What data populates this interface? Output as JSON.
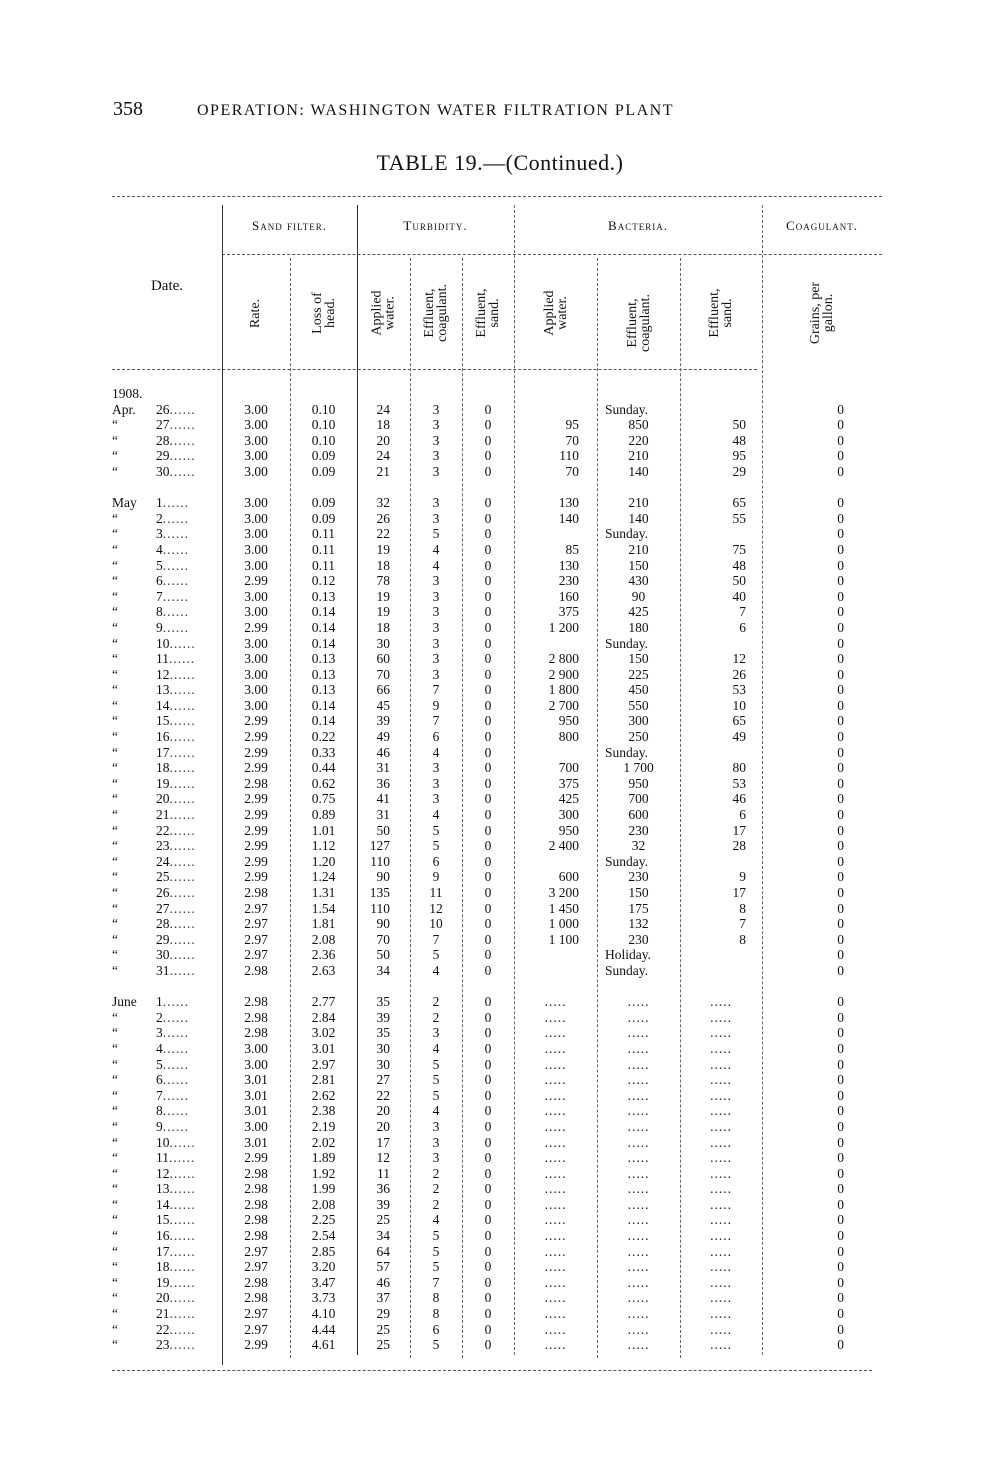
{
  "header": {
    "page_number": "358",
    "running_head": "OPERATION: WASHINGTON WATER FILTRATION PLANT",
    "table_title": "TABLE 19.—(Continued.)"
  },
  "columns": {
    "date": "Date.",
    "groups": {
      "sand_filter": "Sand filter.",
      "turbidity": "Turbidity.",
      "bacteria": "Bacteria.",
      "coagulant": "Coagulant."
    },
    "sand_filter": [
      "Rate.",
      "Loss of head."
    ],
    "turbidity": [
      "Applied water.",
      "Effluent, coagulant.",
      "Effluent, sand."
    ],
    "bacteria": [
      "Applied water.",
      "Effluent, coagulant.",
      "Effluent, sand."
    ],
    "coagulant": [
      "Grains, per gallon."
    ]
  },
  "year": "1908.",
  "months": [
    {
      "name": "Apr.",
      "rows": [
        [
          "26",
          "3.00",
          "0.10",
          "24",
          "3",
          "0",
          "",
          "Sunday.",
          "",
          "0"
        ],
        [
          "27",
          "3.00",
          "0.10",
          "18",
          "3",
          "0",
          "95",
          "850",
          "50",
          "0"
        ],
        [
          "28",
          "3.00",
          "0.10",
          "20",
          "3",
          "0",
          "70",
          "220",
          "48",
          "0"
        ],
        [
          "29",
          "3.00",
          "0.09",
          "24",
          "3",
          "0",
          "110",
          "210",
          "95",
          "0"
        ],
        [
          "30",
          "3.00",
          "0.09",
          "21",
          "3",
          "0",
          "70",
          "140",
          "29",
          "0"
        ]
      ]
    },
    {
      "name": "May",
      "rows": [
        [
          "1",
          "3.00",
          "0.09",
          "32",
          "3",
          "0",
          "130",
          "210",
          "65",
          "0"
        ],
        [
          "2",
          "3.00",
          "0.09",
          "26",
          "3",
          "0",
          "140",
          "140",
          "55",
          "0"
        ],
        [
          "3",
          "3.00",
          "0.11",
          "22",
          "5",
          "0",
          "",
          "Sunday.",
          "",
          "0"
        ],
        [
          "4",
          "3.00",
          "0.11",
          "19",
          "4",
          "0",
          "85",
          "210",
          "75",
          "0"
        ],
        [
          "5",
          "3.00",
          "0.11",
          "18",
          "4",
          "0",
          "130",
          "150",
          "48",
          "0"
        ],
        [
          "6",
          "2.99",
          "0.12",
          "78",
          "3",
          "0",
          "230",
          "430",
          "50",
          "0"
        ],
        [
          "7",
          "3.00",
          "0.13",
          "19",
          "3",
          "0",
          "160",
          "90",
          "40",
          "0"
        ],
        [
          "8",
          "3.00",
          "0.14",
          "19",
          "3",
          "0",
          "375",
          "425",
          "7",
          "0"
        ],
        [
          "9",
          "2.99",
          "0.14",
          "18",
          "3",
          "0",
          "1 200",
          "180",
          "6",
          "0"
        ],
        [
          "10",
          "3.00",
          "0.14",
          "30",
          "3",
          "0",
          "",
          "Sunday.",
          "",
          "0"
        ],
        [
          "11",
          "3.00",
          "0.13",
          "60",
          "3",
          "0",
          "2 800",
          "150",
          "12",
          "0"
        ],
        [
          "12",
          "3.00",
          "0.13",
          "70",
          "3",
          "0",
          "2 900",
          "225",
          "26",
          "0"
        ],
        [
          "13",
          "3.00",
          "0.13",
          "66",
          "7",
          "0",
          "1 800",
          "450",
          "53",
          "0"
        ],
        [
          "14",
          "3.00",
          "0.14",
          "45",
          "9",
          "0",
          "2 700",
          "550",
          "10",
          "0"
        ],
        [
          "15",
          "2.99",
          "0.14",
          "39",
          "7",
          "0",
          "950",
          "300",
          "65",
          "0"
        ],
        [
          "16",
          "2.99",
          "0.22",
          "49",
          "6",
          "0",
          "800",
          "250",
          "49",
          "0"
        ],
        [
          "17",
          "2.99",
          "0.33",
          "46",
          "4",
          "0",
          "",
          "Sunday.",
          "",
          "0"
        ],
        [
          "18",
          "2.99",
          "0.44",
          "31",
          "3",
          "0",
          "700",
          "1 700",
          "80",
          "0"
        ],
        [
          "19",
          "2.98",
          "0.62",
          "36",
          "3",
          "0",
          "375",
          "950",
          "53",
          "0"
        ],
        [
          "20",
          "2.99",
          "0.75",
          "41",
          "3",
          "0",
          "425",
          "700",
          "46",
          "0"
        ],
        [
          "21",
          "2.99",
          "0.89",
          "31",
          "4",
          "0",
          "300",
          "600",
          "6",
          "0"
        ],
        [
          "22",
          "2.99",
          "1.01",
          "50",
          "5",
          "0",
          "950",
          "230",
          "17",
          "0"
        ],
        [
          "23",
          "2.99",
          "1.12",
          "127",
          "5",
          "0",
          "2 400",
          "32",
          "28",
          "0"
        ],
        [
          "24",
          "2.99",
          "1.20",
          "110",
          "6",
          "0",
          "",
          "Sunday.",
          "",
          "0"
        ],
        [
          "25",
          "2.99",
          "1.24",
          "90",
          "9",
          "0",
          "600",
          "230",
          "9",
          "0"
        ],
        [
          "26",
          "2.98",
          "1.31",
          "135",
          "11",
          "0",
          "3 200",
          "150",
          "17",
          "0"
        ],
        [
          "27",
          "2.97",
          "1.54",
          "110",
          "12",
          "0",
          "1 450",
          "175",
          "8",
          "0"
        ],
        [
          "28",
          "2.97",
          "1.81",
          "90",
          "10",
          "0",
          "1 000",
          "132",
          "7",
          "0"
        ],
        [
          "29",
          "2.97",
          "2.08",
          "70",
          "7",
          "0",
          "1 100",
          "230",
          "8",
          "0"
        ],
        [
          "30",
          "2.97",
          "2.36",
          "50",
          "5",
          "0",
          "",
          "Holiday.",
          "",
          "0"
        ],
        [
          "31",
          "2.98",
          "2.63",
          "34",
          "4",
          "0",
          "",
          "Sunday.",
          "",
          "0"
        ]
      ]
    },
    {
      "name": "June",
      "rows": [
        [
          "1",
          "2.98",
          "2.77",
          "35",
          "2",
          "0",
          ".....",
          ".....",
          ".....",
          "0"
        ],
        [
          "2",
          "2.98",
          "2.84",
          "39",
          "2",
          "0",
          ".....",
          ".....",
          ".....",
          "0"
        ],
        [
          "3",
          "2.98",
          "3.02",
          "35",
          "3",
          "0",
          ".....",
          ".....",
          ".....",
          "0"
        ],
        [
          "4",
          "3.00",
          "3.01",
          "30",
          "4",
          "0",
          ".....",
          ".....",
          ".....",
          "0"
        ],
        [
          "5",
          "3.00",
          "2.97",
          "30",
          "5",
          "0",
          ".....",
          ".....",
          ".....",
          "0"
        ],
        [
          "6",
          "3.01",
          "2.81",
          "27",
          "5",
          "0",
          ".....",
          ".....",
          ".....",
          "0"
        ],
        [
          "7",
          "3.01",
          "2.62",
          "22",
          "5",
          "0",
          ".....",
          ".....",
          ".....",
          "0"
        ],
        [
          "8",
          "3.01",
          "2.38",
          "20",
          "4",
          "0",
          ".....",
          ".....",
          ".....",
          "0"
        ],
        [
          "9",
          "3.00",
          "2.19",
          "20",
          "3",
          "0",
          ".....",
          ".....",
          ".....",
          "0"
        ],
        [
          "10",
          "3.01",
          "2.02",
          "17",
          "3",
          "0",
          ".....",
          ".....",
          ".....",
          "0"
        ],
        [
          "11",
          "2.99",
          "1.89",
          "12",
          "3",
          "0",
          ".....",
          ".....",
          ".....",
          "0"
        ],
        [
          "12",
          "2.98",
          "1.92",
          "11",
          "2",
          "0",
          ".....",
          ".....",
          ".....",
          "0"
        ],
        [
          "13",
          "2.98",
          "1.99",
          "36",
          "2",
          "0",
          ".....",
          ".....",
          ".....",
          "0"
        ],
        [
          "14",
          "2.98",
          "2.08",
          "39",
          "2",
          "0",
          ".....",
          ".....",
          ".....",
          "0"
        ],
        [
          "15",
          "2.98",
          "2.25",
          "25",
          "4",
          "0",
          ".....",
          ".....",
          ".....",
          "0"
        ],
        [
          "16",
          "2.98",
          "2.54",
          "34",
          "5",
          "0",
          ".....",
          ".....",
          ".....",
          "0"
        ],
        [
          "17",
          "2.97",
          "2.85",
          "64",
          "5",
          "0",
          ".....",
          ".....",
          ".....",
          "0"
        ],
        [
          "18",
          "2.97",
          "3.20",
          "57",
          "5",
          "0",
          ".....",
          ".....",
          ".....",
          "0"
        ],
        [
          "19",
          "2.98",
          "3.47",
          "46",
          "7",
          "0",
          ".....",
          ".....",
          ".....",
          "0"
        ],
        [
          "20",
          "2.98",
          "3.73",
          "37",
          "8",
          "0",
          ".....",
          ".....",
          ".....",
          "0"
        ],
        [
          "21",
          "2.97",
          "4.10",
          "29",
          "8",
          "0",
          ".....",
          ".....",
          ".....",
          "0"
        ],
        [
          "22",
          "2.97",
          "4.44",
          "25",
          "6",
          "0",
          ".....",
          ".....",
          ".....",
          "0"
        ],
        [
          "23",
          "2.99",
          "4.61",
          "25",
          "5",
          "0",
          ".....",
          ".....",
          ".....",
          "0"
        ]
      ]
    }
  ],
  "ditto_mark": "“",
  "leader": "......"
}
